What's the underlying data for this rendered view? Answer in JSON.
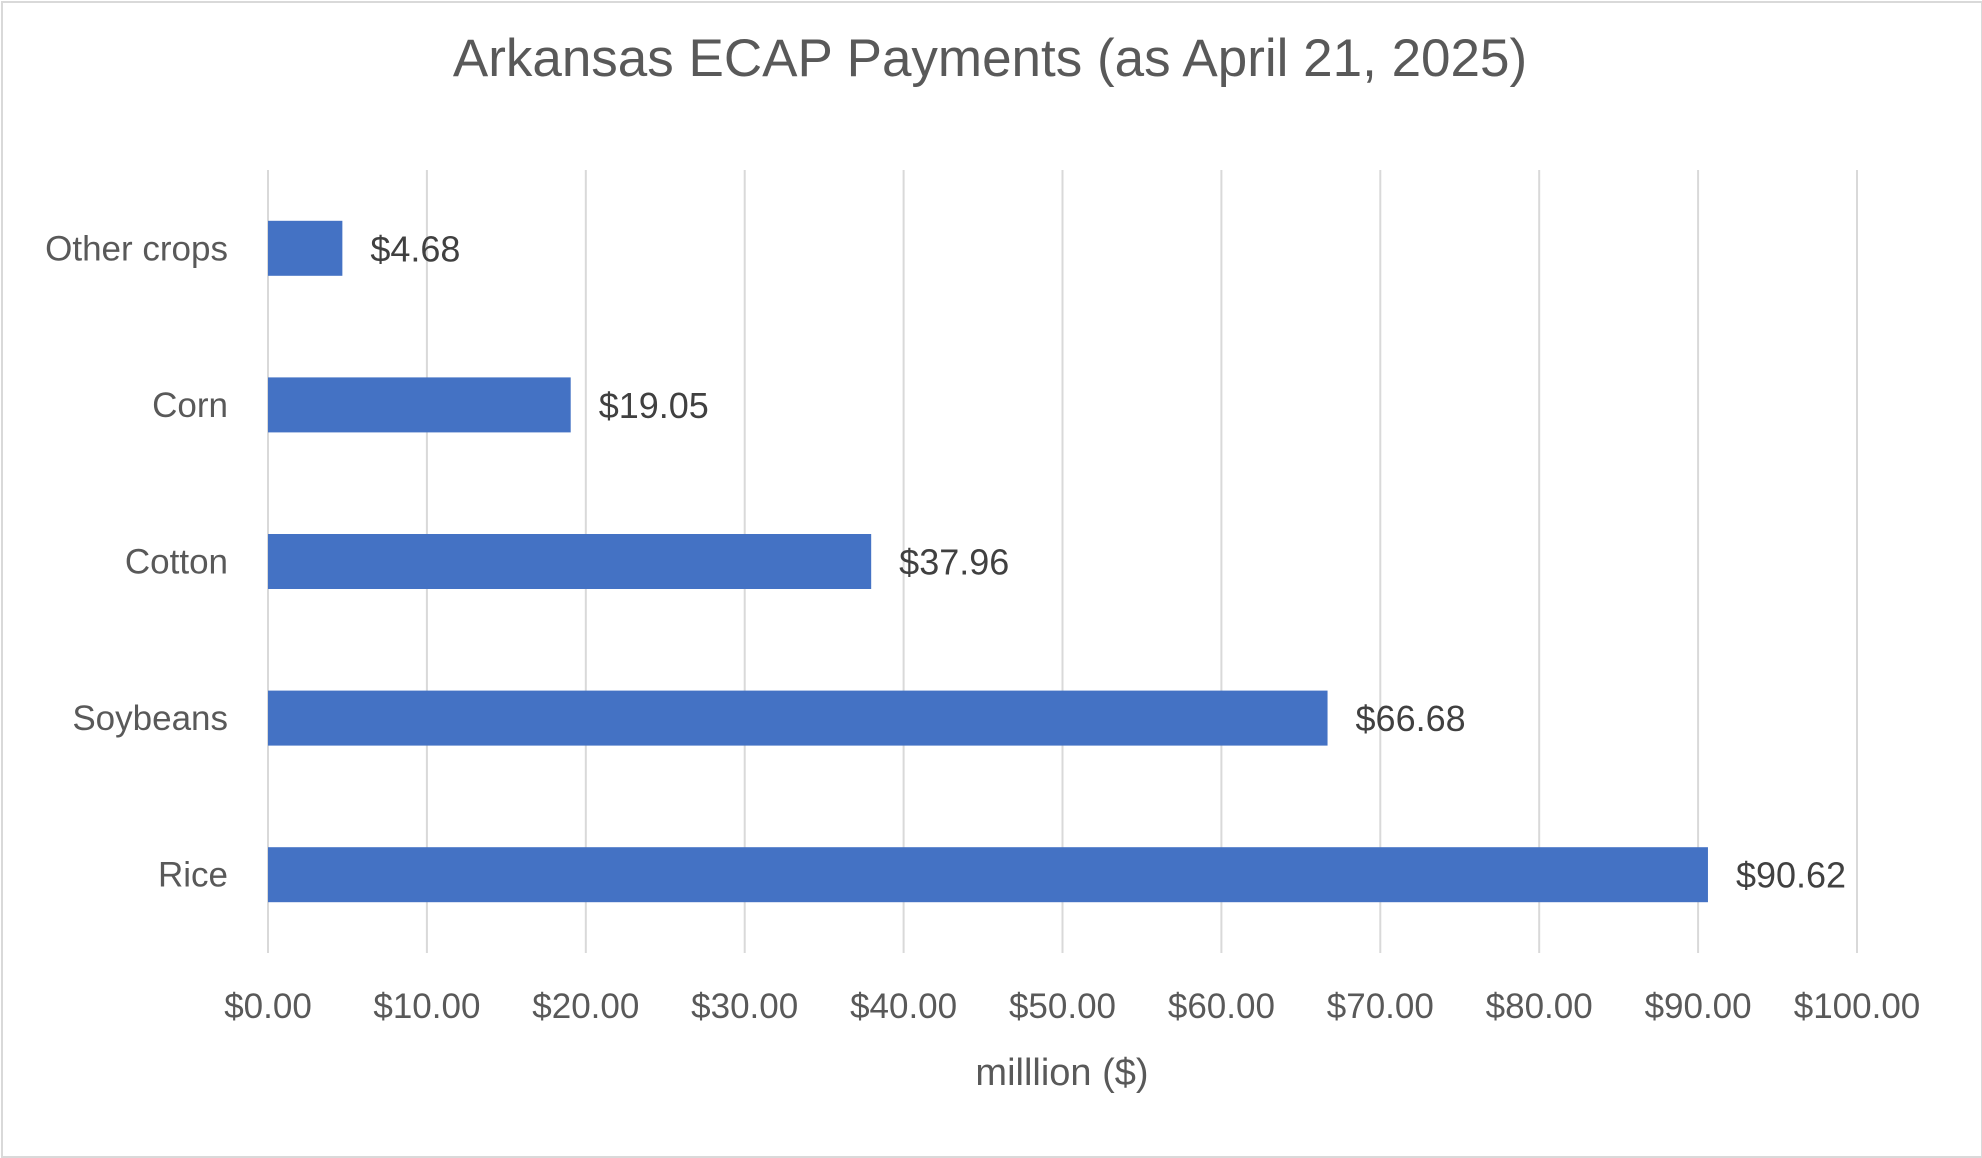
{
  "chart_data": {
    "type": "bar",
    "orientation": "horizontal",
    "title": "Arkansas ECAP Payments (as April 21, 2025)",
    "xlabel": "milllion ($)",
    "ylabel": "",
    "categories": [
      "Other crops",
      "Corn",
      "Cotton",
      "Soybeans",
      "Rice"
    ],
    "values": [
      4.68,
      19.05,
      37.96,
      66.68,
      90.62
    ],
    "data_labels": [
      "$4.68",
      "$19.05",
      "$37.96",
      "$66.68",
      "$90.62"
    ],
    "xlim": [
      0,
      100
    ],
    "x_ticks": [
      0,
      10,
      20,
      30,
      40,
      50,
      60,
      70,
      80,
      90,
      100
    ],
    "x_tick_labels": [
      "$0.00",
      "$10.00",
      "$20.00",
      "$30.00",
      "$40.00",
      "$50.00",
      "$60.00",
      "$70.00",
      "$80.00",
      "$90.00",
      "$100.00"
    ],
    "grid": "vertical",
    "legend": "none",
    "bar_color": "#4472c4",
    "grid_color": "#d9d9d9",
    "text_color": "#595959"
  }
}
